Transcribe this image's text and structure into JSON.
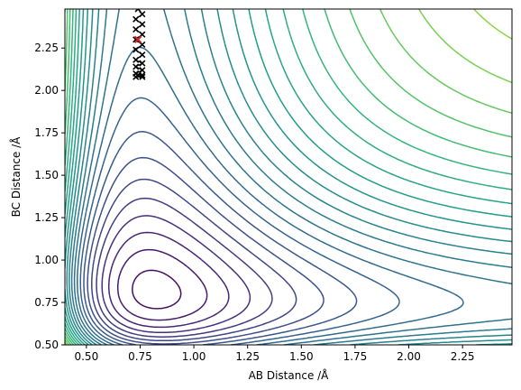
{
  "chart_data": {
    "type": "contour",
    "title": "",
    "xlabel": "AB Distance /Å",
    "ylabel": "BC Distance /Å",
    "xlim": [
      0.4,
      2.48
    ],
    "ylim": [
      0.5,
      2.48
    ],
    "x_ticks": [
      0.5,
      0.75,
      1.0,
      1.25,
      1.5,
      1.75,
      2.0,
      2.25
    ],
    "x_tick_labels": [
      "0.50",
      "0.75",
      "1.00",
      "1.25",
      "1.50",
      "1.75",
      "2.00",
      "2.25"
    ],
    "y_ticks": [
      0.5,
      0.75,
      1.0,
      1.25,
      1.5,
      1.75,
      2.0,
      2.25
    ],
    "y_tick_labels": [
      "0.50",
      "0.75",
      "1.00",
      "1.25",
      "1.50",
      "1.75",
      "2.00",
      "2.25"
    ],
    "grid": false,
    "legend": false,
    "colormap": "viridis",
    "contour_levels": 30,
    "surface": {
      "kind": "LEPS-like potential energy surface",
      "well_x": 0.74,
      "well_y": 0.74
    },
    "trajectory": {
      "x": [
        0.74,
        0.76,
        0.73,
        0.76,
        0.73,
        0.76,
        0.73,
        0.76,
        0.73,
        0.76,
        0.73,
        0.76,
        0.73,
        0.76,
        0.73,
        0.76,
        0.73,
        0.76,
        0.74
      ],
      "y": [
        2.48,
        2.45,
        2.42,
        2.39,
        2.36,
        2.33,
        2.3,
        2.27,
        2.24,
        2.21,
        2.18,
        2.16,
        2.14,
        2.12,
        2.1,
        2.09,
        2.08,
        2.08,
        2.09
      ],
      "color": "#000000",
      "marker": "x"
    },
    "start_point": {
      "x": 0.74,
      "y": 2.3,
      "color": "#d62728",
      "marker": "x"
    }
  }
}
